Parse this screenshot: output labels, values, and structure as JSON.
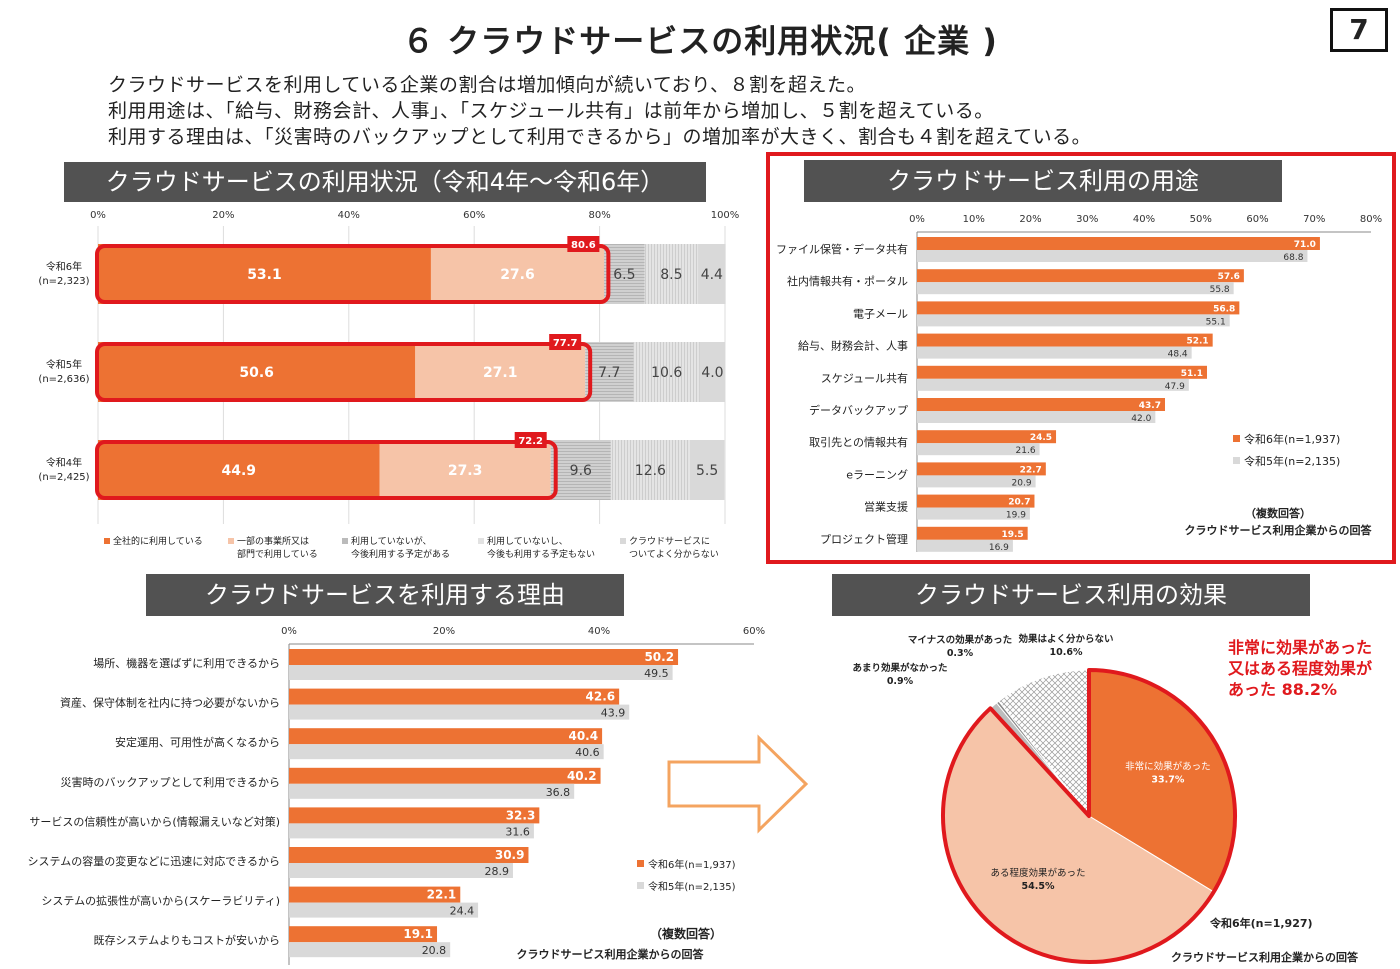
{
  "header": {
    "title": "６ クラウドサービスの利用状況( 企業 )",
    "page_number": "7",
    "summary": [
      "クラウドサービスを利用している企業の割合は増加傾向が続いており、８割を超えた。",
      "利用用途は、「給与、財務会計、人事」、「スケジュール共有」は前年から増加し、５割を超えている。",
      "利用する理由は、「災害時のバックアップとして利用できるから」の増加率が大きく、割合も４割を超えている。"
    ]
  },
  "colors": {
    "orange": "#ED7233",
    "light_orange": "#F6C4A8",
    "gray": "#D9D9D9",
    "highlight_red": "#E0191D",
    "header_bg": "#525252"
  },
  "chart_data": [
    {
      "id": "usage-status",
      "type": "bar",
      "orientation": "horizontal-stacked",
      "title": "クラウドサービスの利用状況（令和4年～令和6年）",
      "x_ticks": [
        "0%",
        "20%",
        "40%",
        "60%",
        "80%",
        "100%"
      ],
      "xlim": [
        0,
        100
      ],
      "categories": [
        {
          "label": "令和6年",
          "n": "(n=2,323)",
          "total": 80.6
        },
        {
          "label": "令和5年",
          "n": "(n=2,636)",
          "total": 77.7
        },
        {
          "label": "令和4年",
          "n": "(n=2,425)",
          "total": 72.2
        }
      ],
      "series": [
        {
          "name": "全社的に利用している",
          "values": [
            53.1,
            50.6,
            44.9
          ]
        },
        {
          "name": "一部の事業所又は部門で利用している",
          "values": [
            27.6,
            27.1,
            27.3
          ]
        },
        {
          "name": "利用していないが、今後利用する予定がある",
          "values": [
            6.5,
            7.7,
            9.6
          ]
        },
        {
          "name": "利用していないし、今後も利用する予定もない",
          "values": [
            8.5,
            10.6,
            12.6
          ]
        },
        {
          "name": "クラウドサービスについてよく分からない",
          "values": [
            4.4,
            4.0,
            5.5
          ]
        }
      ],
      "legend": [
        [
          "全社的に利用している"
        ],
        [
          "一部の事業所又は",
          "部門で利用している"
        ],
        [
          "利用していないが、",
          "今後利用する予定がある"
        ],
        [
          "利用していないし、",
          "今後も利用する予定もない"
        ],
        [
          "クラウドサービスに",
          "ついてよく分からない"
        ]
      ]
    },
    {
      "id": "usage-purposes",
      "type": "bar",
      "orientation": "horizontal-grouped",
      "title": "クラウドサービス利用の用途",
      "x_ticks": [
        "0%",
        "10%",
        "20%",
        "30%",
        "40%",
        "50%",
        "60%",
        "70%",
        "80%"
      ],
      "xlim": [
        0,
        80
      ],
      "categories": [
        "ファイル保管・データ共有",
        "社内情報共有・ポータル",
        "電子メール",
        "給与、財務会計、人事",
        "スケジュール共有",
        "データバックアップ",
        "取引先との情報共有",
        "eラーニング",
        "営業支援",
        "プロジェクト管理"
      ],
      "series": [
        {
          "name": "令和6年(n=1,937)",
          "values": [
            71.0,
            57.6,
            56.8,
            52.1,
            51.1,
            43.7,
            24.5,
            22.7,
            20.7,
            19.5
          ]
        },
        {
          "name": "令和5年(n=2,135)",
          "values": [
            68.8,
            55.8,
            55.1,
            48.4,
            47.9,
            42.0,
            21.6,
            20.9,
            19.9,
            16.9
          ]
        }
      ],
      "note": "（複数回答）",
      "source": "クラウドサービス利用企業からの回答"
    },
    {
      "id": "usage-reasons",
      "type": "bar",
      "orientation": "horizontal-grouped",
      "title": "クラウドサービスを利用する理由",
      "x_ticks": [
        "0%",
        "20%",
        "40%",
        "60%"
      ],
      "xlim": [
        0,
        60
      ],
      "categories": [
        "場所、機器を選ばずに利用できるから",
        "資産、保守体制を社内に持つ必要がないから",
        "安定運用、可用性が高くなるから",
        "災害時のバックアップとして利用できるから",
        "サービスの信頼性が高いから(情報漏えいなど対策)",
        "システムの容量の変更などに迅速に対応できるから",
        "システムの拡張性が高いから(スケーラビリティ)",
        "既存システムよりもコストが安いから"
      ],
      "series": [
        {
          "name": "令和6年(n=1,937)",
          "values": [
            50.2,
            42.6,
            40.4,
            40.2,
            32.3,
            30.9,
            22.1,
            19.1
          ]
        },
        {
          "name": "令和5年(n=2,135)",
          "values": [
            49.5,
            43.9,
            40.6,
            36.8,
            31.6,
            28.9,
            24.4,
            20.8
          ]
        }
      ],
      "note": "（複数回答）",
      "source": "クラウドサービス利用企業からの回答"
    },
    {
      "id": "usage-effects",
      "type": "pie",
      "title": "クラウドサービス利用の効果",
      "slices": [
        {
          "label": "非常に効果があった",
          "value": 33.7
        },
        {
          "label": "ある程度効果があった",
          "value": 54.5
        },
        {
          "label": "あまり効果がなかった",
          "value": 0.9
        },
        {
          "label": "マイナスの効果があった",
          "value": 0.3
        },
        {
          "label": "効果はよく分からない",
          "value": 10.6
        }
      ],
      "callout": [
        "非常に効果があった",
        "又はある程度効果が",
        "あった  88.2%"
      ],
      "sample": "令和6年(n=1,927)",
      "source": "クラウドサービス利用企業からの回答"
    }
  ]
}
